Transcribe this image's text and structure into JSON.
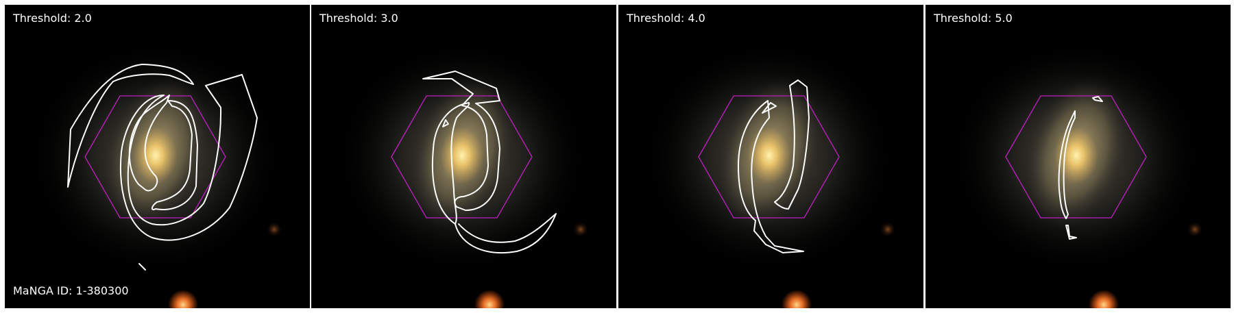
{
  "figure": {
    "manga_id_text": "MaNGA ID: 1-380300",
    "colors": {
      "contour": "#ffffff",
      "hexagon": "#c21fc2",
      "label_text": "#ffffff",
      "background": "#000000",
      "galaxy_core": "#f2d27a",
      "foreground_star": "#ff7a2a"
    },
    "panels": [
      {
        "threshold_label": "Threshold: 2.0",
        "threshold": 2.0
      },
      {
        "threshold_label": "Threshold: 3.0",
        "threshold": 3.0
      },
      {
        "threshold_label": "Threshold: 4.0",
        "threshold": 4.0
      },
      {
        "threshold_label": "Threshold: 5.0",
        "threshold": 5.0
      }
    ]
  }
}
